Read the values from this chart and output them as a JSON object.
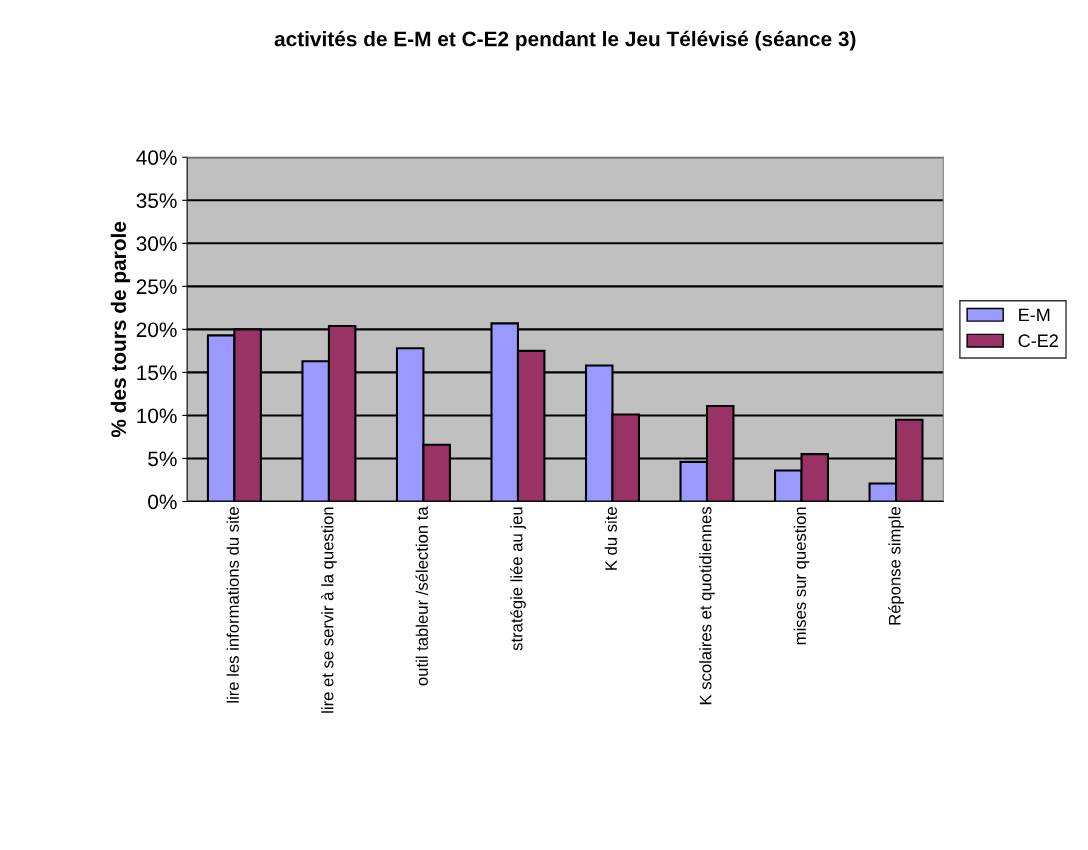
{
  "chart_data": {
    "type": "bar",
    "title": "activités de E-M et C-E2 pendant le Jeu Télévisé (séance 3)",
    "ylabel": "% des tours de parole",
    "categories": [
      "lire les informations du site",
      "lire et se servir à la question",
      "outil tableur /sélection ta",
      "stratégie liée au jeu",
      "K du site",
      "K scolaires et quotidiennes",
      "mises sur question",
      "Réponse simple"
    ],
    "series": [
      {
        "name": "E-M",
        "color": "#9999ff",
        "values": [
          19.3,
          16.3,
          17.8,
          20.7,
          15.8,
          4.6,
          3.6,
          2.1
        ]
      },
      {
        "name": "C-E2",
        "color": "#993366",
        "values": [
          20.0,
          20.4,
          6.6,
          17.5,
          10.1,
          11.1,
          5.5,
          9.5
        ]
      }
    ],
    "ylim": [
      0,
      40
    ],
    "yticks": [
      {
        "value": 0,
        "label": "0%"
      },
      {
        "value": 5,
        "label": "5%"
      },
      {
        "value": 10,
        "label": "10%"
      },
      {
        "value": 15,
        "label": "15%"
      },
      {
        "value": 20,
        "label": "20%"
      },
      {
        "value": 25,
        "label": "25%"
      },
      {
        "value": 30,
        "label": "30%"
      },
      {
        "value": 35,
        "label": "35%"
      },
      {
        "value": 40,
        "label": "40%"
      }
    ],
    "grid": "y",
    "legend": "right"
  }
}
